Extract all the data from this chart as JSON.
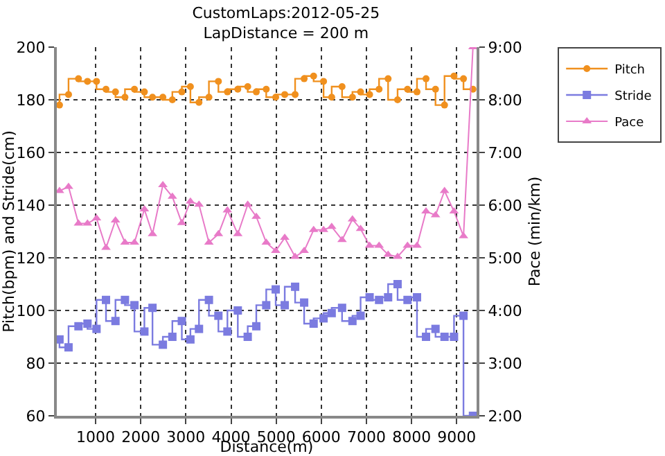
{
  "chart_data": {
    "type": "step",
    "title": "CustomLaps:2012-05-25",
    "subtitle": "LapDistance = 200 m",
    "xlabel": "Distance(m)",
    "ylabel": "Pitch(bpm) and Stride(cm)",
    "y2label": "Pace (min/km)",
    "x": [
      200,
      400,
      620,
      820,
      1020,
      1230,
      1440,
      1650,
      1860,
      2080,
      2260,
      2490,
      2700,
      2910,
      3100,
      3290,
      3510,
      3720,
      3920,
      4150,
      4370,
      4560,
      4780,
      4990,
      5190,
      5420,
      5620,
      5830,
      6050,
      6230,
      6460,
      6690,
      6870,
      7070,
      7280,
      7480,
      7690,
      7910,
      8120,
      8320,
      8530,
      8730,
      8940,
      9150,
      9360
    ],
    "series": [
      {
        "name": "Pitch",
        "color": "#f0901e",
        "marker": "circle",
        "values": [
          178,
          182,
          188,
          187,
          187,
          184,
          183,
          181,
          184,
          183,
          181,
          181,
          180,
          183,
          185,
          179,
          181,
          187,
          183,
          184,
          185,
          183,
          184,
          181,
          182,
          182,
          188,
          189,
          187,
          181,
          185,
          181,
          183,
          182,
          184,
          188,
          180,
          184,
          183,
          188,
          184,
          178,
          189,
          188,
          184
        ]
      },
      {
        "name": "Stride",
        "color": "#7b7be0",
        "marker": "square",
        "values": [
          89,
          86,
          94,
          95,
          93,
          104,
          96,
          104,
          102,
          92,
          101,
          87,
          90,
          96,
          89,
          93,
          104,
          98,
          92,
          100,
          90,
          94,
          102,
          108,
          102,
          109,
          103,
          95,
          97,
          99,
          101,
          96,
          98,
          105,
          104,
          105,
          110,
          104,
          105,
          90,
          93,
          90,
          90,
          98,
          60
        ]
      },
      {
        "name": "Pace",
        "type": "line",
        "axis": "y2",
        "color": "#e87ac8",
        "marker": "triangle",
        "values": [
          6.27,
          6.35,
          5.65,
          5.65,
          5.75,
          5.19,
          5.71,
          5.29,
          5.29,
          5.92,
          5.45,
          6.38,
          6.16,
          5.66,
          6.07,
          6.01,
          5.29,
          5.45,
          5.9,
          5.45,
          6.01,
          5.78,
          5.29,
          5.13,
          5.38,
          5.02,
          5.13,
          5.53,
          5.53,
          5.59,
          5.34,
          5.73,
          5.55,
          5.23,
          5.23,
          5.06,
          5.02,
          5.23,
          5.23,
          5.88,
          5.81,
          6.27,
          5.88,
          5.41,
          9
        ]
      }
    ],
    "xlim": [
      140,
      9440
    ],
    "xticks": [
      1000,
      2000,
      3000,
      4000,
      5000,
      6000,
      7000,
      8000,
      9000
    ],
    "ylim": [
      60,
      200
    ],
    "yticks": [
      60,
      80,
      100,
      120,
      140,
      160,
      180,
      200
    ],
    "y2lim": [
      2,
      9
    ],
    "y2ticks": [
      {
        "value": 2,
        "label": "2:00"
      },
      {
        "value": 3,
        "label": "3:00"
      },
      {
        "value": 4,
        "label": "4:00"
      },
      {
        "value": 5,
        "label": "5:00"
      },
      {
        "value": 6,
        "label": "6:00"
      },
      {
        "value": 7,
        "label": "7:00"
      },
      {
        "value": 8,
        "label": "8:00"
      },
      {
        "value": 9,
        "label": "9:00"
      }
    ],
    "grid": true,
    "legend": "top right"
  }
}
